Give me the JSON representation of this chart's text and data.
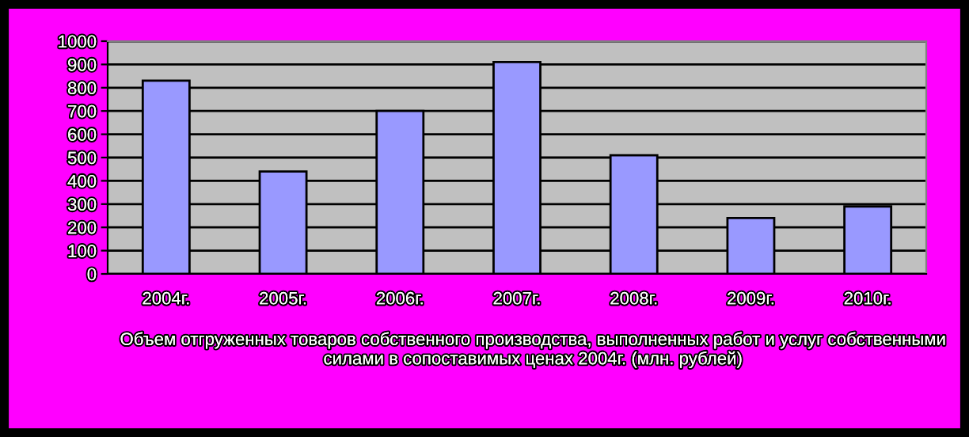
{
  "chart_data": {
    "type": "bar",
    "xlabel": "Объем отгруженных товаров собственного производства, выполненных работ и услуг собственными силами в сопоставимых ценах 2004г. (млн. рублей)",
    "categories": [
      "2004г.",
      "2005г.",
      "2006г.",
      "2007г.",
      "2008г.",
      "2009г.",
      "2010г."
    ],
    "values": [
      830,
      440,
      700,
      910,
      510,
      240,
      290
    ],
    "color": "#9999ff",
    "ylim": [
      0,
      1000
    ],
    "yticks": [
      0,
      100,
      200,
      300,
      400,
      500,
      600,
      700,
      800,
      900,
      1000
    ],
    "grid": "y"
  }
}
